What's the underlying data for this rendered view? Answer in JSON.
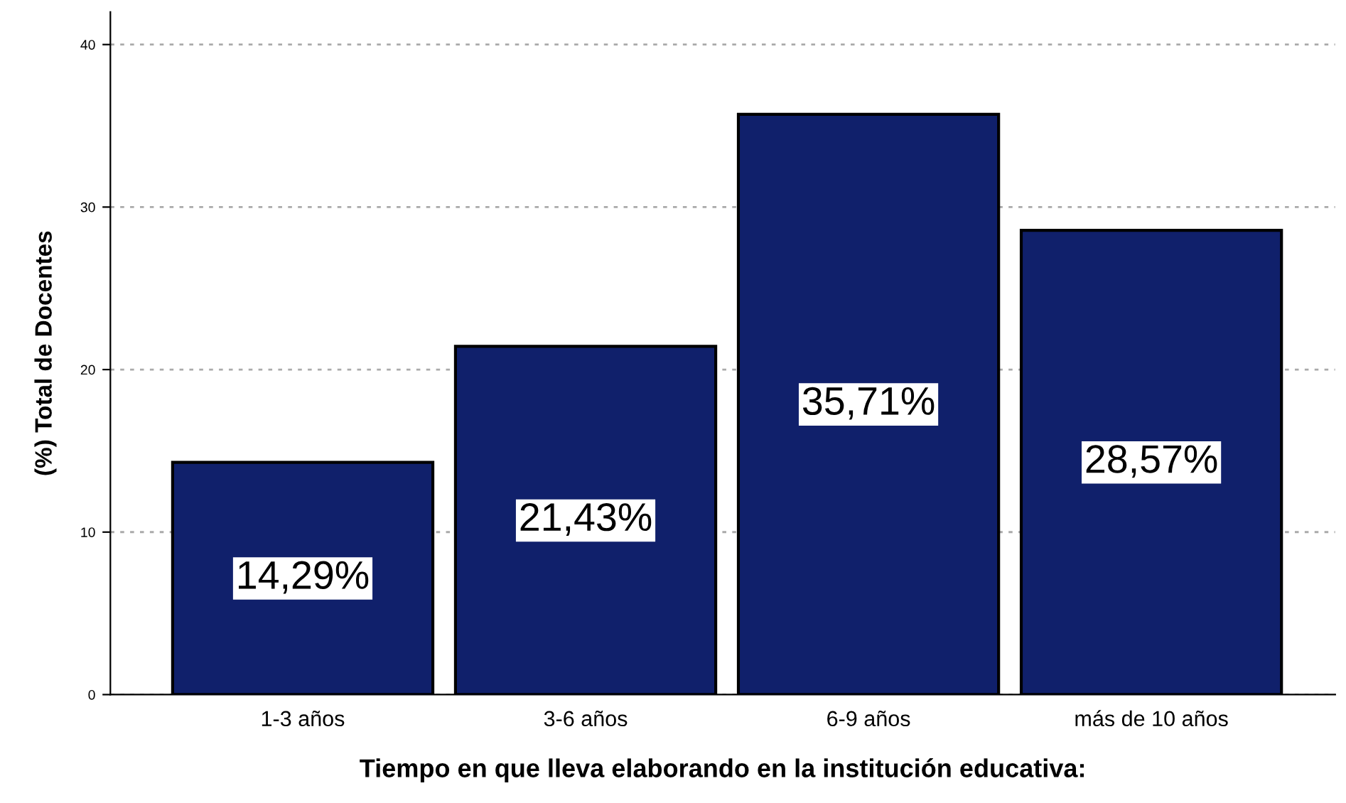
{
  "chart_data": {
    "type": "bar",
    "xlabel": "Tiempo en que lleva elaborando en la institución educativa:",
    "ylabel": "(%) Total de Docentes",
    "categories": [
      "1-3 años",
      "3-6 años",
      "6-9 años",
      "más de 10 años"
    ],
    "values": [
      14.29,
      21.43,
      35.71,
      28.57
    ],
    "value_labels": [
      "14,29%",
      "21,43%",
      "35,71%",
      "28,57%"
    ],
    "color": "#10206b",
    "ylim": [
      0,
      42
    ],
    "yticks": [
      0,
      10,
      20,
      30,
      40
    ],
    "grid": "y"
  }
}
